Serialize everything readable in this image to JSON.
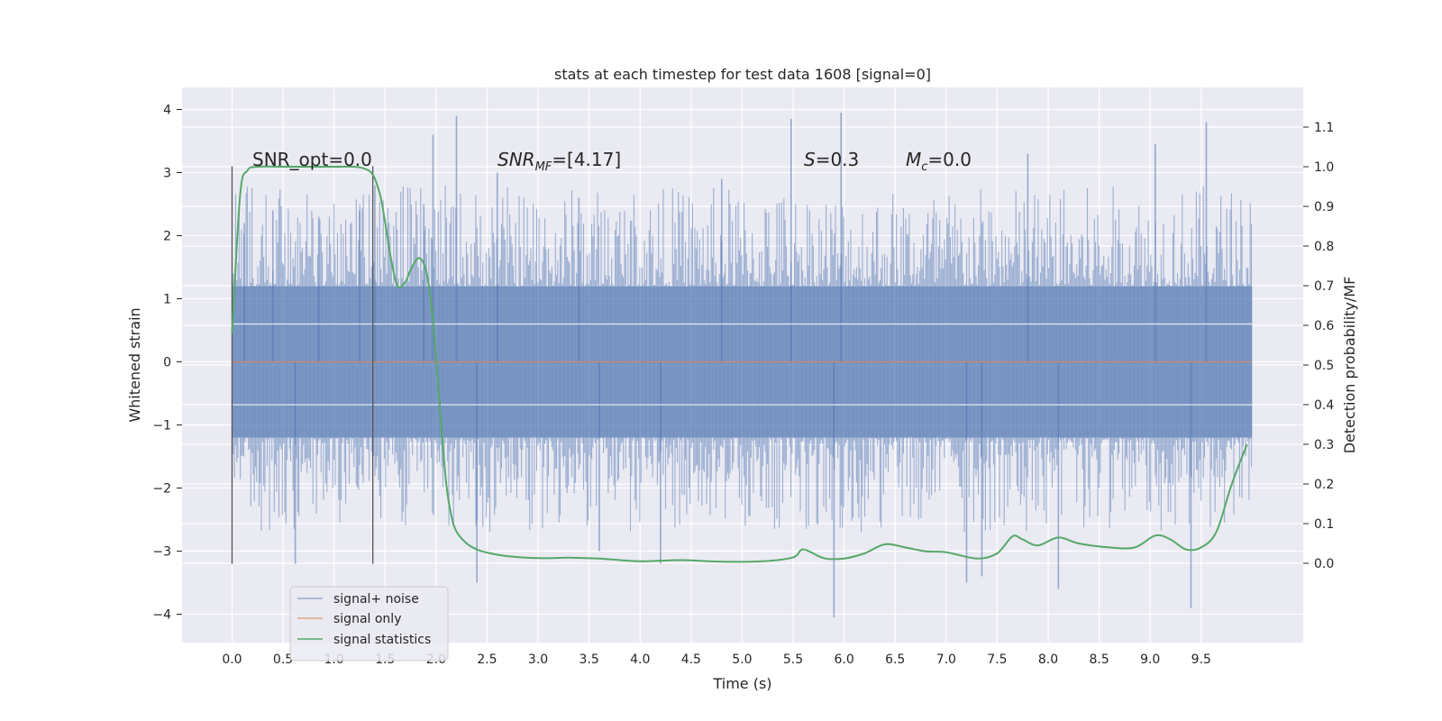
{
  "chart_data": {
    "type": "line",
    "title": "stats at each timestep for test data 1608 [signal=0]",
    "xlabel": "Time (s)",
    "ylabel": "Whitened strain",
    "ylabel_right": "Detection probability/MF",
    "xlim": [
      -0.49,
      10.5
    ],
    "ylim": [
      -4.45,
      4.35
    ],
    "ylim_right": [
      -0.2,
      1.2
    ],
    "x_ticks": [
      "0.0",
      "0.5",
      "1.0",
      "1.5",
      "2.0",
      "2.5",
      "3.0",
      "3.5",
      "4.0",
      "4.5",
      "5.0",
      "5.5",
      "6.0",
      "6.5",
      "7.0",
      "7.5",
      "8.0",
      "8.5",
      "9.0",
      "9.5"
    ],
    "y_ticks": [
      "4",
      "3",
      "2",
      "1",
      "0",
      "−1",
      "−2",
      "−3",
      "−4"
    ],
    "y_ticks_right": [
      "1.1",
      "1.0",
      "0.9",
      "0.8",
      "0.7",
      "0.6",
      "0.5",
      "0.4",
      "0.3",
      "0.2",
      "0.1",
      "0.0"
    ],
    "grid": true,
    "legend_position": "lower-left",
    "colors": {
      "background": "#eaeaf2",
      "noise": "#4c72b0",
      "signal": "#dd8452",
      "stats": "#55a868",
      "marker": "#555555"
    },
    "annotations": {
      "snr_opt": "SNR_opt=0.0",
      "snr_mf_main": "SNR",
      "snr_mf_sub": "MF",
      "snr_mf_rest": "=[4.17]",
      "s_main": "S",
      "s_rest": "=0.3",
      "mc_main": "M",
      "mc_sub": "c",
      "mc_rest": "=0.0"
    },
    "vertical_markers": [
      0.0,
      1.38
    ],
    "series": [
      {
        "name": "signal+ noise",
        "type": "noise",
        "x_range": [
          0.0,
          10.0
        ],
        "baseline_band": [
          -1.2,
          1.2
        ],
        "spikes": [
          {
            "x": 0.12,
            "y": 2.2
          },
          {
            "x": 0.4,
            "y": 2.4
          },
          {
            "x": 0.62,
            "y": -3.2
          },
          {
            "x": 0.85,
            "y": 2.3
          },
          {
            "x": 1.25,
            "y": 2.4
          },
          {
            "x": 1.4,
            "y": 2.8
          },
          {
            "x": 1.88,
            "y": 2.5
          },
          {
            "x": 1.97,
            "y": 3.6
          },
          {
            "x": 2.2,
            "y": 3.9
          },
          {
            "x": 2.4,
            "y": -3.5
          },
          {
            "x": 2.6,
            "y": 3.0
          },
          {
            "x": 3.4,
            "y": 2.6
          },
          {
            "x": 3.6,
            "y": -3.0
          },
          {
            "x": 4.2,
            "y": -3.2
          },
          {
            "x": 4.8,
            "y": 2.9
          },
          {
            "x": 5.48,
            "y": 3.85
          },
          {
            "x": 5.9,
            "y": -4.05
          },
          {
            "x": 5.97,
            "y": 3.95
          },
          {
            "x": 7.2,
            "y": -3.5
          },
          {
            "x": 7.35,
            "y": -3.4
          },
          {
            "x": 7.8,
            "y": 3.3
          },
          {
            "x": 8.1,
            "y": -3.6
          },
          {
            "x": 9.05,
            "y": 3.45
          },
          {
            "x": 9.4,
            "y": -3.9
          },
          {
            "x": 9.55,
            "y": 3.8
          }
        ]
      },
      {
        "name": "signal only",
        "type": "line",
        "x": [
          0.0,
          10.0
        ],
        "y": [
          0.0,
          0.0
        ]
      },
      {
        "name": "signal statistics",
        "type": "line",
        "axis": "right",
        "x": [
          0.0,
          0.08,
          0.15,
          0.25,
          0.5,
          1.0,
          1.2,
          1.3,
          1.38,
          1.45,
          1.5,
          1.55,
          1.62,
          1.7,
          1.75,
          1.83,
          1.9,
          1.95,
          2.0,
          2.05,
          2.1,
          2.15,
          2.2,
          2.3,
          2.4,
          2.5,
          2.7,
          3.0,
          3.3,
          3.6,
          4.0,
          4.4,
          4.8,
          5.2,
          5.5,
          5.6,
          5.8,
          6.0,
          6.2,
          6.4,
          6.6,
          6.8,
          7.0,
          7.3,
          7.5,
          7.65,
          7.75,
          7.9,
          8.1,
          8.3,
          8.6,
          8.85,
          9.05,
          9.2,
          9.35,
          9.5,
          9.65,
          9.8,
          9.95
        ],
        "y": [
          0.58,
          0.93,
          0.99,
          1.0,
          1.0,
          1.0,
          1.0,
          0.995,
          0.98,
          0.93,
          0.86,
          0.78,
          0.7,
          0.71,
          0.74,
          0.77,
          0.74,
          0.66,
          0.52,
          0.35,
          0.2,
          0.12,
          0.08,
          0.05,
          0.035,
          0.027,
          0.018,
          0.013,
          0.014,
          0.012,
          0.005,
          0.008,
          0.004,
          0.005,
          0.015,
          0.035,
          0.013,
          0.012,
          0.025,
          0.048,
          0.04,
          0.03,
          0.028,
          0.012,
          0.025,
          0.068,
          0.06,
          0.045,
          0.065,
          0.05,
          0.04,
          0.04,
          0.07,
          0.06,
          0.035,
          0.04,
          0.08,
          0.2,
          0.3
        ]
      }
    ]
  }
}
